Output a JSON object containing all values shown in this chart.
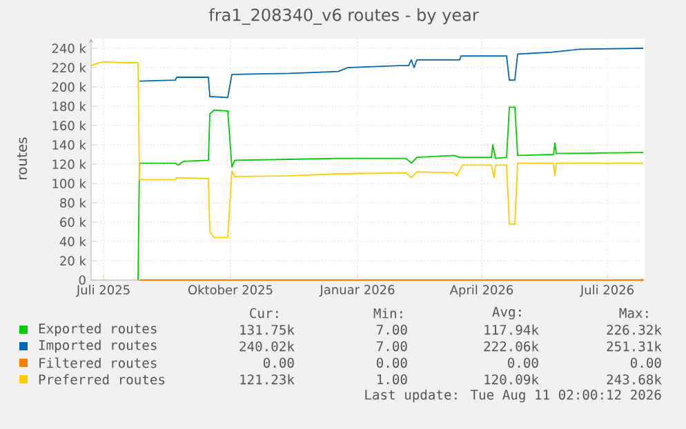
{
  "chart_data": {
    "type": "line",
    "title": "fra1_208340_v6 routes - by year",
    "ylabel": "routes",
    "xlim": [
      "2025-06-22",
      "2026-07-28"
    ],
    "xticks": [
      {
        "value": "2025-07-01",
        "label": "Juli 2025"
      },
      {
        "value": "2025-10-01",
        "label": "Oktober 2025"
      },
      {
        "value": "2026-01-01",
        "label": "Januar 2026"
      },
      {
        "value": "2026-04-01",
        "label": "April 2026"
      },
      {
        "value": "2026-07-01",
        "label": "Juli 2026"
      }
    ],
    "ylim": [
      0,
      250000
    ],
    "yticks": [
      0,
      {
        "value": 20000,
        "label": "20 k"
      },
      {
        "value": 40000,
        "label": "40 k"
      },
      {
        "value": 60000,
        "label": "60 k"
      },
      {
        "value": 80000,
        "label": "80 k"
      },
      {
        "value": 100000,
        "label": "100 k"
      },
      {
        "value": 120000,
        "label": "120 k"
      },
      {
        "value": 140000,
        "label": "140 k"
      },
      {
        "value": 160000,
        "label": "160 k"
      },
      {
        "value": 180000,
        "label": "180 k"
      },
      {
        "value": 200000,
        "label": "200 k"
      },
      {
        "value": 220000,
        "label": "220 k"
      },
      {
        "value": 240000,
        "label": "240 k"
      }
    ],
    "grid": true,
    "legend": "bottom",
    "series": [
      {
        "name": "Exported routes",
        "color": "#00cc00",
        "x": [
          "2025-07-26",
          "2025-07-27",
          "2025-08-22",
          "2025-08-24",
          "2025-08-28",
          "2025-09-15",
          "2025-09-16",
          "2025-09-19",
          "2025-09-29",
          "2025-10-02",
          "2025-10-04",
          "2025-11-13",
          "2025-12-18",
          "2026-02-05",
          "2026-02-09",
          "2026-02-13",
          "2026-03-12",
          "2026-03-16",
          "2026-04-08",
          "2026-04-09",
          "2026-04-11",
          "2026-04-19",
          "2026-04-21",
          "2026-04-25",
          "2026-04-27",
          "2026-05-23",
          "2026-05-24",
          "2026-05-25",
          "2026-07-27"
        ],
        "values": [
          0,
          121000,
          121000,
          119000,
          123000,
          124000,
          172000,
          176000,
          175000,
          117000,
          124000,
          125000,
          126000,
          126000,
          121000,
          127000,
          129000,
          127000,
          127000,
          140000,
          126000,
          127000,
          179000,
          179000,
          129000,
          130000,
          142000,
          131000,
          132000
        ]
      },
      {
        "name": "Imported routes",
        "color": "#0066b3",
        "x": [
          "2025-07-27",
          "2025-08-22",
          "2025-08-23",
          "2025-09-15",
          "2025-09-16",
          "2025-09-29",
          "2025-10-02",
          "2025-11-13",
          "2025-12-18",
          "2025-12-25",
          "2026-02-01",
          "2026-02-07",
          "2026-02-09",
          "2026-02-11",
          "2026-02-13",
          "2026-03-16",
          "2026-03-17",
          "2026-04-19",
          "2026-04-21",
          "2026-04-25",
          "2026-04-27",
          "2026-05-22",
          "2026-06-11",
          "2026-07-27"
        ],
        "values": [
          206000,
          207000,
          210000,
          210000,
          190000,
          189000,
          213000,
          214000,
          216000,
          220000,
          222000,
          222000,
          228000,
          220000,
          228000,
          228000,
          232000,
          232000,
          207000,
          207000,
          234000,
          236000,
          239000,
          240000
        ]
      },
      {
        "name": "Filtered routes",
        "color": "#ff8000",
        "x": [
          "2025-07-27",
          "2026-07-27"
        ],
        "values": [
          0,
          0
        ]
      },
      {
        "name": "Preferred routes",
        "color": "#ffcc00",
        "x": [
          "2025-06-22",
          "2025-06-26",
          "2025-07-01",
          "2025-07-16",
          "2025-07-26",
          "2025-07-27",
          "2025-08-22",
          "2025-08-23",
          "2025-09-15",
          "2025-09-16",
          "2025-09-19",
          "2025-09-29",
          "2025-10-02",
          "2025-10-04",
          "2025-11-13",
          "2025-12-18",
          "2026-02-05",
          "2026-02-09",
          "2026-02-13",
          "2026-03-12",
          "2026-03-14",
          "2026-03-18",
          "2026-04-08",
          "2026-04-10",
          "2026-04-11",
          "2026-04-19",
          "2026-04-21",
          "2026-04-25",
          "2026-04-27",
          "2026-05-23",
          "2026-05-24",
          "2026-05-25",
          "2026-07-27"
        ],
        "values": [
          222000,
          224000,
          226000,
          225000,
          225000,
          104000,
          104000,
          106000,
          105000,
          50000,
          44000,
          44000,
          113000,
          107000,
          108000,
          110000,
          111000,
          106000,
          112000,
          111000,
          108000,
          119000,
          119000,
          106000,
          119000,
          119000,
          58000,
          58000,
          121000,
          121000,
          108000,
          121000,
          121000
        ]
      }
    ],
    "annotations": [
      "Cur:",
      "Min:",
      "Avg:",
      "Max:",
      "131.75k",
      "7.00",
      "117.94k",
      "226.32k",
      "240.02k",
      "7.00",
      "222.06k",
      "251.31k",
      "0.00",
      "0.00",
      "0.00",
      "0.00",
      "121.23k",
      "1.00",
      "120.09k",
      "243.68k",
      "Last update: Tue Aug 11 02:00:12 2026"
    ]
  }
}
